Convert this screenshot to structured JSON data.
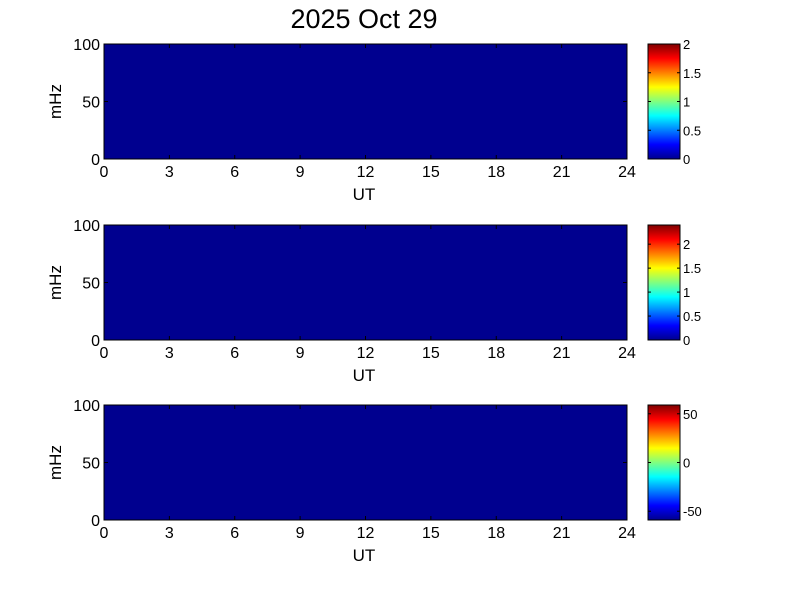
{
  "title": "2025 Oct 29",
  "chart_data": [
    {
      "type": "heatmap",
      "xlabel": "UT",
      "ylabel": "mHz",
      "xlim": [
        0,
        24
      ],
      "ylim": [
        0,
        100
      ],
      "xticks": [
        "0",
        "3",
        "6",
        "9",
        "12",
        "15",
        "18",
        "21",
        "24"
      ],
      "yticks": [
        "0",
        "50",
        "100"
      ],
      "colormap": "jet",
      "clim": [
        0,
        2
      ],
      "cticks": [
        "0",
        "0.5",
        "1",
        "1.5",
        "2"
      ],
      "fill_value": 0,
      "fill_color": "#00008F"
    },
    {
      "type": "heatmap",
      "xlabel": "UT",
      "ylabel": "mHz",
      "xlim": [
        0,
        24
      ],
      "ylim": [
        0,
        100
      ],
      "xticks": [
        "0",
        "3",
        "6",
        "9",
        "12",
        "15",
        "18",
        "21",
        "24"
      ],
      "yticks": [
        "0",
        "50",
        "100"
      ],
      "colormap": "jet",
      "clim": [
        0,
        2.4
      ],
      "cticks": [
        "0",
        "0.5",
        "1",
        "1.5",
        "2"
      ],
      "fill_value": 0,
      "fill_color": "#00008F"
    },
    {
      "type": "heatmap",
      "xlabel": "UT",
      "ylabel": "mHz",
      "xlim": [
        0,
        24
      ],
      "ylim": [
        0,
        100
      ],
      "xticks": [
        "0",
        "3",
        "6",
        "9",
        "12",
        "15",
        "18",
        "21",
        "24"
      ],
      "yticks": [
        "0",
        "50",
        "100"
      ],
      "colormap": "jet",
      "clim": [
        -59,
        59
      ],
      "cticks": [
        "-50",
        "0",
        "50"
      ],
      "fill_value": -59,
      "fill_color": "#00008F"
    }
  ]
}
